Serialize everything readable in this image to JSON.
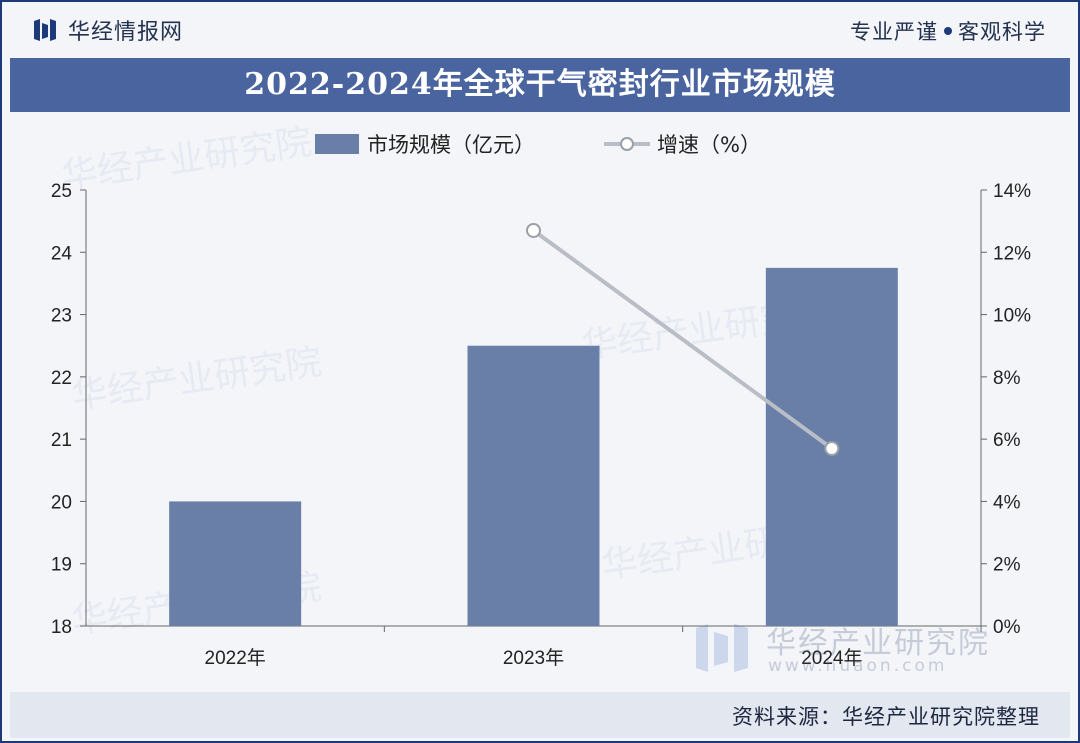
{
  "header": {
    "brand": "华经情报网",
    "slogan_left": "专业严谨",
    "slogan_right": "客观科学"
  },
  "footer": {
    "source": "资料来源：华经产业研究院整理"
  },
  "watermark": {
    "name": "华经产业研究院",
    "url": "www.huaon.com"
  },
  "colors": {
    "bar": "#6a7fa8",
    "line": "#b9bec6",
    "title_band": "#4a64a0"
  },
  "chart_data": {
    "type": "bar",
    "title": "2022-2024年全球干气密封行业市场规模",
    "categories": [
      "2022年",
      "2023年",
      "2024年"
    ],
    "series": [
      {
        "name": "市场规模（亿元）",
        "type": "bar",
        "axis": "left",
        "values": [
          20.0,
          22.5,
          23.75
        ]
      },
      {
        "name": "增速（%）",
        "type": "line",
        "axis": "right",
        "values": [
          null,
          12.7,
          5.7
        ]
      }
    ],
    "y_left": {
      "min": 18,
      "max": 25,
      "ticks": [
        "18",
        "19",
        "20",
        "21",
        "22",
        "23",
        "24",
        "25"
      ]
    },
    "y_right": {
      "min": 0,
      "max": 14,
      "ticks": [
        "0%",
        "2%",
        "4%",
        "6%",
        "8%",
        "10%",
        "12%",
        "14%"
      ]
    },
    "legend_position": "top-center",
    "grid": false
  }
}
